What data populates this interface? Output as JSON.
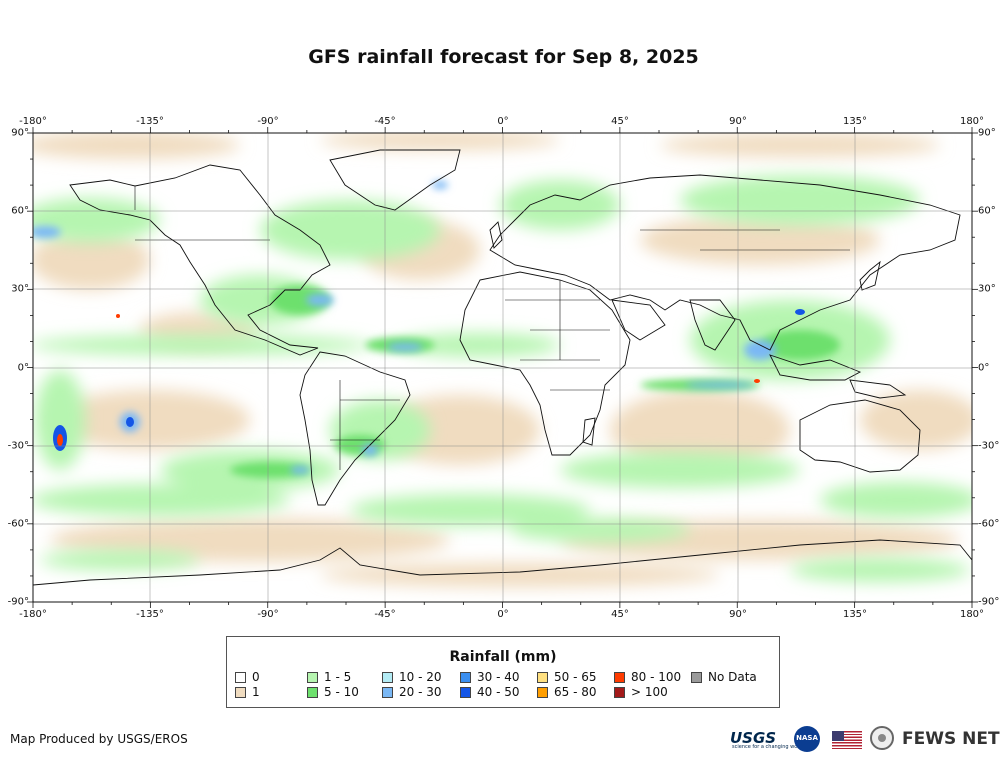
{
  "title": "GFS rainfall forecast for Sep 8, 2025",
  "lon_ticks": [
    "-180°",
    "-135°",
    "-90°",
    "-45°",
    "0°",
    "45°",
    "90°",
    "135°",
    "180°"
  ],
  "lat_ticks": [
    "90°",
    "60°",
    "30°",
    "0°",
    "-30°",
    "-60°",
    "-90°"
  ],
  "legend": {
    "title": "Rainfall (mm)",
    "items": [
      {
        "label": "0",
        "color": "#ffffff"
      },
      {
        "label": "1",
        "color": "#f0dcc0"
      },
      {
        "label": "1 - 5",
        "color": "#b6f5b0"
      },
      {
        "label": "5 - 10",
        "color": "#6de06d"
      },
      {
        "label": "10 - 20",
        "color": "#b4ecf5"
      },
      {
        "label": "20 - 30",
        "color": "#7ab8f5"
      },
      {
        "label": "30 - 40",
        "color": "#3b8ff0"
      },
      {
        "label": "40 - 50",
        "color": "#1455e6"
      },
      {
        "label": "50 - 65",
        "color": "#ffe080"
      },
      {
        "label": "65 - 80",
        "color": "#ff9e00"
      },
      {
        "label": "80 - 100",
        "color": "#ff3c00"
      },
      {
        "label": "> 100",
        "color": "#a31a1a"
      },
      {
        "label": "No Data",
        "color": "#9a9a9a"
      }
    ]
  },
  "credit": "Map Produced by USGS/EROS",
  "logos": {
    "usgs": "USGS",
    "usgs_tagline": "science for a changing world",
    "nasa": "NASA",
    "fews": "FEWS NET",
    "flag_icon": "us-flag-icon",
    "seal_icon": "state-department-seal-icon"
  }
}
